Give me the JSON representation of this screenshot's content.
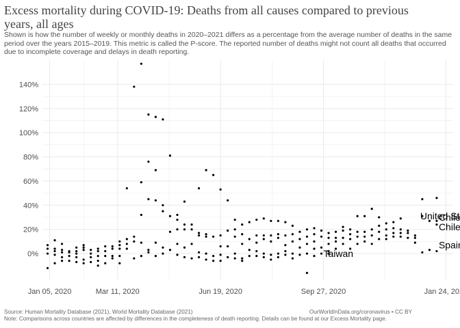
{
  "header": {
    "title": "Excess mortality during COVID-19: Deaths from all causes compared to previous years, all ages",
    "subtitle": "Shown is how the number of weekly or monthly deaths in 2020–2021 differs as a percentage from the average number of deaths in the same period over the years 2015–2019. This metric is called the P-score. The reported number of deaths might not count all deaths that occurred due to incomplete coverage and delays in death reporting."
  },
  "footer": {
    "source": "Source: Human Mortality Database (2021), World Mortality Database (2021)",
    "note": "Note: Comparisons across countries are affected by differences in the completeness of death reporting. Details can be found at our Excess Mortality page.",
    "credit": "OurWorldInData.org/coronavirus • CC BY"
  },
  "colors": {
    "points": "#000000",
    "grid": "#ebebeb",
    "axis_text": "#4d4d4d"
  },
  "chart_data": {
    "type": "scatter",
    "x_ticks": [
      "Jan 05, 2020",
      "Mar 11, 2020",
      "Jun 19, 2020",
      "Sep 27, 2020",
      "Jan 24, 2021"
    ],
    "x_tick_days": [
      0,
      66,
      166,
      266,
      385
    ],
    "xlim": [
      -7,
      392
    ],
    "y_ticks": [
      "0%",
      "20%",
      "40%",
      "60%",
      "80%",
      "100%",
      "120%",
      "140%"
    ],
    "y_tick_values": [
      0,
      20,
      40,
      60,
      80,
      100,
      120,
      140
    ],
    "ylim": [
      -22,
      160
    ],
    "grid": true,
    "labels": [
      {
        "text": "United States",
        "x": 360,
        "y": 31
      },
      {
        "text": "Chile",
        "x": 378,
        "y": 30
      },
      {
        "text": "Chile",
        "x": 378,
        "y": 22
      },
      {
        "text": "Spain",
        "x": 378,
        "y": 7
      },
      {
        "text": "Taiwan",
        "x": 266,
        "y": 0
      }
    ],
    "points": [
      [
        -2,
        7
      ],
      [
        -2,
        4
      ],
      [
        -2,
        0
      ],
      [
        -2,
        -12
      ],
      [
        5,
        11
      ],
      [
        5,
        4
      ],
      [
        5,
        2
      ],
      [
        5,
        -1
      ],
      [
        5,
        -8
      ],
      [
        12,
        8
      ],
      [
        12,
        3
      ],
      [
        12,
        1
      ],
      [
        12,
        -3
      ],
      [
        12,
        -6
      ],
      [
        19,
        2
      ],
      [
        19,
        1
      ],
      [
        19,
        -2
      ],
      [
        19,
        -6
      ],
      [
        26,
        5
      ],
      [
        26,
        2
      ],
      [
        26,
        0
      ],
      [
        26,
        -3
      ],
      [
        26,
        -7
      ],
      [
        33,
        7
      ],
      [
        33,
        5
      ],
      [
        33,
        3
      ],
      [
        33,
        -5
      ],
      [
        33,
        -8
      ],
      [
        40,
        3
      ],
      [
        40,
        0
      ],
      [
        40,
        -3
      ],
      [
        40,
        -7
      ],
      [
        47,
        4
      ],
      [
        47,
        2
      ],
      [
        47,
        -2
      ],
      [
        47,
        -6
      ],
      [
        47,
        -10
      ],
      [
        54,
        6
      ],
      [
        54,
        2
      ],
      [
        54,
        -2
      ],
      [
        54,
        -8
      ],
      [
        61,
        6
      ],
      [
        61,
        4
      ],
      [
        61,
        -2
      ],
      [
        61,
        -4
      ],
      [
        68,
        10
      ],
      [
        68,
        7
      ],
      [
        68,
        4
      ],
      [
        68,
        -2
      ],
      [
        68,
        -8
      ],
      [
        75,
        54
      ],
      [
        75,
        12
      ],
      [
        75,
        8
      ],
      [
        75,
        4
      ],
      [
        82,
        138
      ],
      [
        82,
        14
      ],
      [
        82,
        10
      ],
      [
        82,
        -4
      ],
      [
        89,
        157
      ],
      [
        89,
        59
      ],
      [
        89,
        32
      ],
      [
        89,
        9
      ],
      [
        89,
        -2
      ],
      [
        96,
        115
      ],
      [
        96,
        76
      ],
      [
        96,
        45
      ],
      [
        96,
        3
      ],
      [
        96,
        1
      ],
      [
        103,
        113
      ],
      [
        103,
        69
      ],
      [
        103,
        44
      ],
      [
        103,
        9
      ],
      [
        103,
        -2
      ],
      [
        110,
        111
      ],
      [
        110,
        40
      ],
      [
        110,
        35
      ],
      [
        110,
        5
      ],
      [
        110,
        0
      ],
      [
        117,
        81
      ],
      [
        117,
        31
      ],
      [
        117,
        18
      ],
      [
        117,
        3
      ],
      [
        124,
        32
      ],
      [
        124,
        28
      ],
      [
        124,
        20
      ],
      [
        124,
        8
      ],
      [
        124,
        -1
      ],
      [
        131,
        43
      ],
      [
        131,
        24
      ],
      [
        131,
        20
      ],
      [
        131,
        5
      ],
      [
        131,
        -3
      ],
      [
        138,
        24
      ],
      [
        138,
        20
      ],
      [
        138,
        8
      ],
      [
        138,
        -4
      ],
      [
        145,
        54
      ],
      [
        145,
        17
      ],
      [
        145,
        15
      ],
      [
        145,
        1
      ],
      [
        145,
        -3
      ],
      [
        152,
        69
      ],
      [
        152,
        16
      ],
      [
        152,
        14
      ],
      [
        152,
        0
      ],
      [
        152,
        -5
      ],
      [
        159,
        65
      ],
      [
        159,
        14
      ],
      [
        159,
        -2
      ],
      [
        159,
        -6
      ],
      [
        166,
        53
      ],
      [
        166,
        15
      ],
      [
        166,
        6
      ],
      [
        166,
        -1
      ],
      [
        166,
        -6
      ],
      [
        173,
        44
      ],
      [
        173,
        19
      ],
      [
        173,
        6
      ],
      [
        173,
        -3
      ],
      [
        180,
        28
      ],
      [
        180,
        20
      ],
      [
        180,
        14
      ],
      [
        180,
        0
      ],
      [
        180,
        -4
      ],
      [
        187,
        24
      ],
      [
        187,
        16
      ],
      [
        187,
        8
      ],
      [
        187,
        -4
      ],
      [
        187,
        -6
      ],
      [
        194,
        26
      ],
      [
        194,
        12
      ],
      [
        194,
        3
      ],
      [
        194,
        -2
      ],
      [
        201,
        28
      ],
      [
        201,
        15
      ],
      [
        201,
        9
      ],
      [
        201,
        2
      ],
      [
        201,
        -2
      ],
      [
        208,
        29
      ],
      [
        208,
        15
      ],
      [
        208,
        12
      ],
      [
        208,
        0
      ],
      [
        208,
        -3
      ],
      [
        215,
        27
      ],
      [
        215,
        15
      ],
      [
        215,
        10
      ],
      [
        215,
        -1
      ],
      [
        215,
        -5
      ],
      [
        222,
        27
      ],
      [
        222,
        16
      ],
      [
        222,
        13
      ],
      [
        222,
        0
      ],
      [
        222,
        -3
      ],
      [
        229,
        26
      ],
      [
        229,
        15
      ],
      [
        229,
        7
      ],
      [
        229,
        2
      ],
      [
        229,
        -1
      ],
      [
        236,
        23
      ],
      [
        236,
        16
      ],
      [
        236,
        10
      ],
      [
        236,
        0
      ],
      [
        236,
        -4
      ],
      [
        243,
        18
      ],
      [
        243,
        12
      ],
      [
        243,
        5
      ],
      [
        243,
        -1
      ],
      [
        250,
        20
      ],
      [
        250,
        14
      ],
      [
        250,
        8
      ],
      [
        250,
        0
      ],
      [
        250,
        -16
      ],
      [
        257,
        21
      ],
      [
        257,
        16
      ],
      [
        257,
        10
      ],
      [
        257,
        4
      ],
      [
        257,
        -2
      ],
      [
        264,
        19
      ],
      [
        264,
        14
      ],
      [
        264,
        5
      ],
      [
        264,
        0
      ],
      [
        271,
        17
      ],
      [
        271,
        13
      ],
      [
        271,
        8
      ],
      [
        271,
        2
      ],
      [
        271,
        0
      ],
      [
        278,
        18
      ],
      [
        278,
        13
      ],
      [
        278,
        10
      ],
      [
        278,
        4
      ],
      [
        285,
        22
      ],
      [
        285,
        19
      ],
      [
        285,
        13
      ],
      [
        285,
        8
      ],
      [
        292,
        20
      ],
      [
        292,
        16
      ],
      [
        292,
        12
      ],
      [
        292,
        4
      ],
      [
        299,
        31
      ],
      [
        299,
        18
      ],
      [
        299,
        14
      ],
      [
        299,
        8
      ],
      [
        306,
        31
      ],
      [
        306,
        18
      ],
      [
        306,
        14
      ],
      [
        306,
        10
      ],
      [
        313,
        37
      ],
      [
        313,
        20
      ],
      [
        313,
        15
      ],
      [
        313,
        8
      ],
      [
        320,
        30
      ],
      [
        320,
        23
      ],
      [
        320,
        18
      ],
      [
        320,
        12
      ],
      [
        327,
        25
      ],
      [
        327,
        20
      ],
      [
        327,
        15
      ],
      [
        327,
        12
      ],
      [
        334,
        26
      ],
      [
        334,
        21
      ],
      [
        334,
        17
      ],
      [
        334,
        14
      ],
      [
        341,
        29
      ],
      [
        341,
        20
      ],
      [
        341,
        17
      ],
      [
        341,
        14
      ],
      [
        348,
        19
      ],
      [
        348,
        17
      ],
      [
        348,
        13
      ],
      [
        355,
        15
      ],
      [
        355,
        13
      ],
      [
        355,
        9
      ],
      [
        362,
        45
      ],
      [
        362,
        31
      ],
      [
        362,
        1
      ],
      [
        369,
        27
      ],
      [
        369,
        3
      ],
      [
        376,
        46
      ],
      [
        376,
        27
      ],
      [
        376,
        24
      ],
      [
        376,
        2
      ]
    ]
  }
}
